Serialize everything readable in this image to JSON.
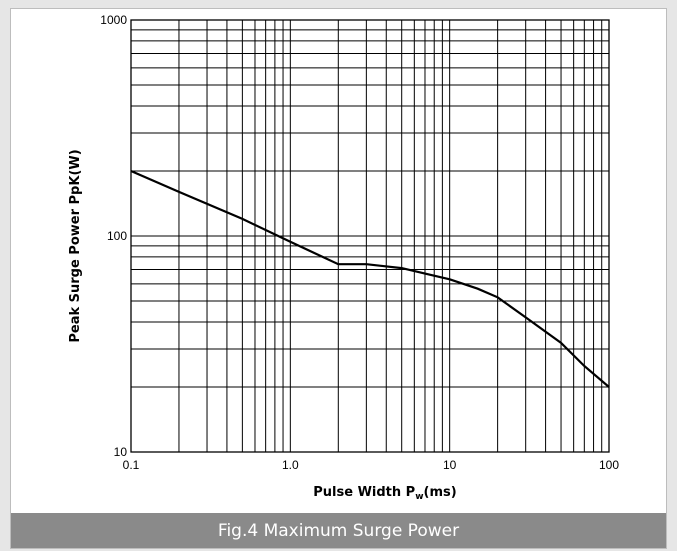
{
  "chart_data": {
    "type": "line",
    "xscale": "log",
    "yscale": "log",
    "xlim": [
      0.1,
      100
    ],
    "ylim": [
      10,
      1000
    ],
    "grid": true,
    "xlabel": {
      "main": "Pulse Width  P",
      "sub": "w",
      "unit": "(ms)"
    },
    "ylabel": "Peak Surge Power  PpK(W)",
    "x_tick_labels": [
      "0.1",
      "1.0",
      "10",
      "100"
    ],
    "y_tick_labels": [
      "10",
      "100",
      "1000"
    ],
    "series": [
      {
        "color": "#000000",
        "x": [
          0.1,
          0.2,
          0.5,
          1.0,
          2.0,
          3.0,
          5.0,
          7.0,
          10,
          15,
          20,
          30,
          50,
          70,
          100
        ],
        "y": [
          200,
          160,
          120,
          94,
          74,
          74,
          71,
          67,
          63,
          57,
          52,
          42,
          32,
          25,
          20
        ]
      }
    ],
    "caption": "Fig.4 Maximum Surge Power"
  }
}
